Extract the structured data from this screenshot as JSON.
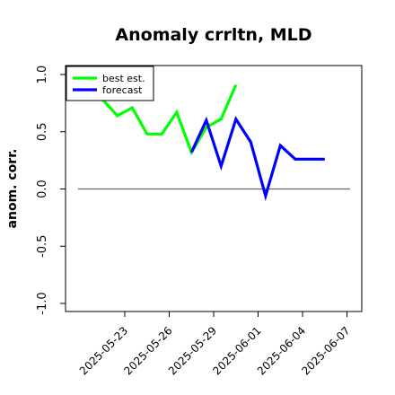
{
  "chart_data": {
    "type": "line",
    "title": "Anomaly crrltn, MLD",
    "xlabel": "",
    "ylabel": "anom. corr.",
    "ylim": [
      -1.0,
      1.0
    ],
    "y_ticks": [
      "-1.0",
      "-0.5",
      "0.0",
      "0.5",
      "1.0"
    ],
    "x_ticks": [
      {
        "label": "2025-05-23",
        "color": "#000000"
      },
      {
        "label": "2025-05-26",
        "color": "#000000"
      },
      {
        "label": "2025-05-29",
        "color": "#228B22"
      },
      {
        "label": "2025-06-01",
        "color": "#000000"
      },
      {
        "label": "2025-06-04",
        "color": "#000000"
      },
      {
        "label": "2025-06-07",
        "color": "#000000"
      }
    ],
    "x_tick_days": [
      2,
      5,
      8,
      11,
      14,
      17
    ],
    "reference_line": {
      "y": 0.0,
      "color": "#666666"
    },
    "legend": {
      "position": "top-left",
      "entries": [
        "best est.",
        "forecast"
      ]
    },
    "series": [
      {
        "name": "best est.",
        "color": "#00ff00",
        "x": [
          -0.3,
          0.5,
          1.5,
          2.5,
          3.5,
          4.5,
          5.5,
          6.5,
          7.5,
          8.5,
          9.5
        ],
        "y": [
          0.93,
          0.78,
          0.64,
          0.71,
          0.48,
          0.48,
          0.67,
          0.32,
          0.54,
          0.61,
          0.91
        ]
      },
      {
        "name": "forecast",
        "color": "#0000ff",
        "x": [
          6.5,
          7.5,
          8.5,
          9.5,
          10.5,
          11.5,
          12.5,
          13.5,
          14.5,
          15.5
        ],
        "y": [
          0.32,
          0.6,
          0.2,
          0.61,
          0.41,
          -0.06,
          0.38,
          0.26,
          0.26,
          0.26
        ]
      }
    ]
  }
}
